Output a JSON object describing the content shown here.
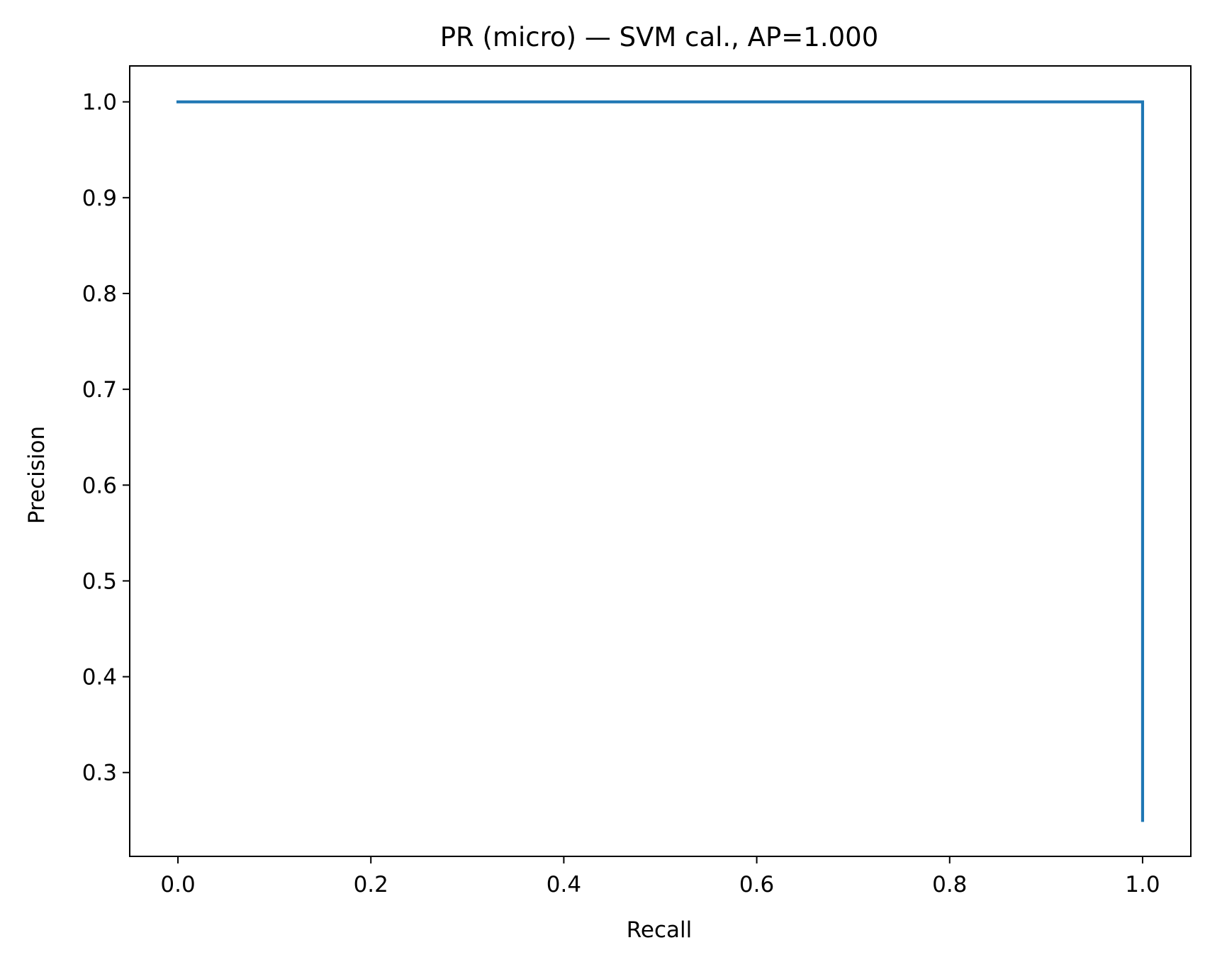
{
  "chart_data": {
    "type": "line",
    "title": "PR (micro) — SVM cal., AP=1.000",
    "xlabel": "Recall",
    "ylabel": "Precision",
    "xlim": [
      -0.05,
      1.05
    ],
    "ylim": [
      0.2125,
      1.0375
    ],
    "xticks": [
      0.0,
      0.2,
      0.4,
      0.6,
      0.8,
      1.0
    ],
    "xtick_labels": [
      "0.0",
      "0.2",
      "0.4",
      "0.6",
      "0.8",
      "1.0"
    ],
    "yticks": [
      0.3,
      0.4,
      0.5,
      0.6,
      0.7,
      0.8,
      0.9,
      1.0
    ],
    "ytick_labels": [
      "0.3",
      "0.4",
      "0.5",
      "0.6",
      "0.7",
      "0.8",
      "0.9",
      "1.0"
    ],
    "grid": false,
    "series": [
      {
        "color": "#1f77b4",
        "x": [
          0.0,
          1.0,
          1.0
        ],
        "y": [
          1.0,
          1.0,
          0.25
        ]
      }
    ]
  }
}
